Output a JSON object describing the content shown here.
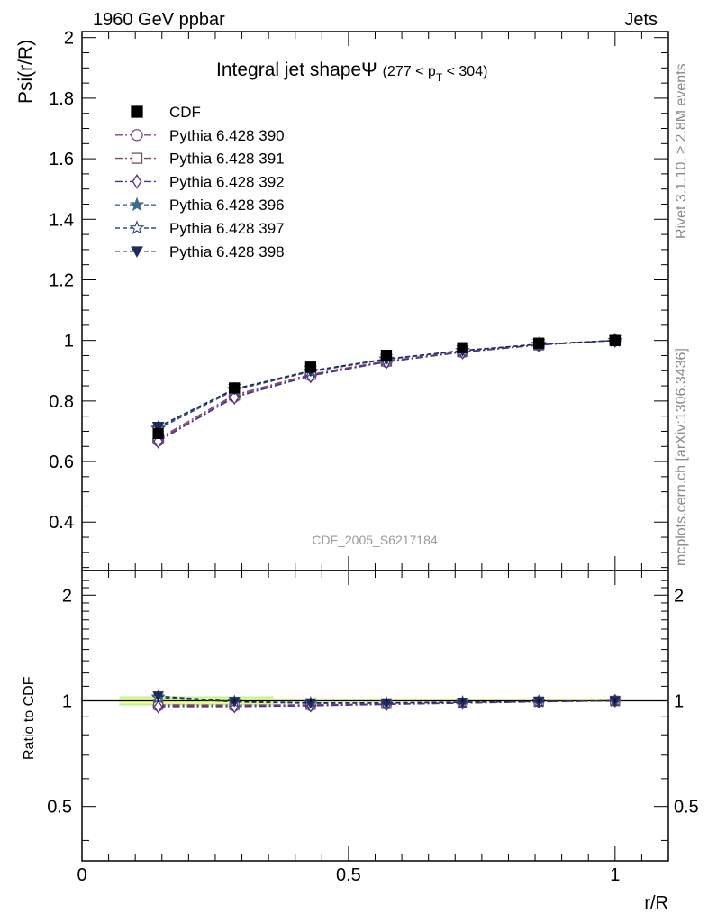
{
  "header": {
    "left": "1960 GeV ppbar",
    "right": "Jets"
  },
  "side_labels": {
    "rivet": "Rivet 3.1.10, ≥ 2.8M events",
    "mcplots": "mcplots.cern.ch [arXiv:1306.3436]"
  },
  "chart_data": {
    "type": "line",
    "title_main": "Integral jet shapeΨ",
    "title_range": "(277 < p",
    "title_sub": "T",
    "title_range_end": " < 304)",
    "ylabel": "Psi(r/R)",
    "xlabel": "r/R",
    "ratio_ylabel": "Ratio to CDF",
    "watermark": "CDF_2005_S6217184",
    "xlim": [
      0,
      1.1
    ],
    "ylim": [
      0.24,
      2.02
    ],
    "ratio_ylim": [
      0.35,
      2.35
    ],
    "x_ticks": [
      "0",
      "0.5",
      "1"
    ],
    "y_ticks": [
      "0.4",
      "0.6",
      "0.8",
      "1",
      "1.2",
      "1.4",
      "1.6",
      "1.8",
      "2"
    ],
    "ratio_ticks": [
      "0.5",
      "1",
      "2"
    ],
    "x": [
      0.143,
      0.286,
      0.429,
      0.571,
      0.714,
      0.857,
      1.0
    ],
    "data": {
      "name": "CDF",
      "values": [
        0.693,
        0.843,
        0.912,
        0.951,
        0.976,
        0.991,
        1.0
      ],
      "color": "#000000"
    },
    "series": [
      {
        "name": "Pythia 6.428 390",
        "marker": "circle-open",
        "dash": "dashdot",
        "color": "#7b4a8c",
        "values": [
          0.67,
          0.815,
          0.885,
          0.93,
          0.962,
          0.985,
          1.0
        ],
        "ratio": [
          0.967,
          0.967,
          0.97,
          0.978,
          0.986,
          0.994,
          1.0
        ]
      },
      {
        "name": "Pythia 6.428 391",
        "marker": "square-open",
        "dash": "dashdot",
        "color": "#7a4860",
        "values": [
          0.675,
          0.82,
          0.888,
          0.932,
          0.963,
          0.986,
          1.0
        ],
        "ratio": [
          0.974,
          0.973,
          0.974,
          0.98,
          0.987,
          0.995,
          1.0
        ]
      },
      {
        "name": "Pythia 6.428 392",
        "marker": "diamond-open",
        "dash": "dashdot",
        "color": "#4c3088",
        "values": [
          0.667,
          0.812,
          0.883,
          0.929,
          0.961,
          0.985,
          1.0
        ],
        "ratio": [
          0.962,
          0.963,
          0.968,
          0.977,
          0.985,
          0.994,
          1.0
        ]
      },
      {
        "name": "Pythia 6.428 396",
        "marker": "star-filled",
        "dash": "dashed",
        "color": "#3f6a8a",
        "values": [
          0.712,
          0.838,
          0.898,
          0.938,
          0.966,
          0.987,
          1.0
        ],
        "ratio": [
          1.027,
          0.994,
          0.985,
          0.986,
          0.99,
          0.996,
          1.0
        ]
      },
      {
        "name": "Pythia 6.428 397",
        "marker": "star-open",
        "dash": "dashed",
        "color": "#2e4a78",
        "values": [
          0.708,
          0.836,
          0.897,
          0.937,
          0.966,
          0.987,
          1.0
        ],
        "ratio": [
          1.021,
          0.992,
          0.984,
          0.985,
          0.99,
          0.996,
          1.0
        ]
      },
      {
        "name": "Pythia 6.428 398",
        "marker": "triangle-down",
        "dash": "dashed",
        "color": "#1e2a5c",
        "values": [
          0.715,
          0.84,
          0.9,
          0.939,
          0.967,
          0.988,
          1.0
        ],
        "ratio": [
          1.032,
          0.996,
          0.987,
          0.987,
          0.991,
          0.997,
          1.0
        ]
      }
    ],
    "ratio_band": {
      "color_inner": "#f6ff7a",
      "color_outer": "#bff2a6"
    },
    "legend_position": "top-left"
  }
}
